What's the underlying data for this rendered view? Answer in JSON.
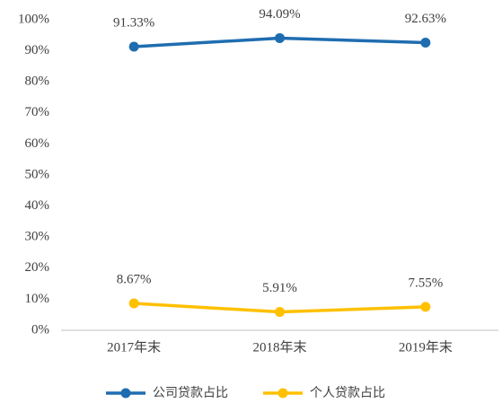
{
  "chart_data": {
    "type": "line",
    "categories": [
      "2017年末",
      "2018年末",
      "2019年末"
    ],
    "series": [
      {
        "name": "公司贷款占比",
        "color": "#1f6db0",
        "values": [
          91.33,
          94.09,
          92.63
        ],
        "value_labels": [
          "91.33%",
          "94.09%",
          "92.63%"
        ]
      },
      {
        "name": "个人贷款占比",
        "color": "#ffc000",
        "values": [
          8.67,
          5.91,
          7.55
        ],
        "value_labels": [
          "8.67%",
          "5.91%",
          "7.55%"
        ]
      }
    ],
    "ylim": [
      0,
      100
    ],
    "yticks": [
      {
        "value": 0,
        "label": "0%"
      },
      {
        "value": 10,
        "label": "10%"
      },
      {
        "value": 20,
        "label": "20%"
      },
      {
        "value": 30,
        "label": "30%"
      },
      {
        "value": 40,
        "label": "40%"
      },
      {
        "value": 50,
        "label": "50%"
      },
      {
        "value": 60,
        "label": "60%"
      },
      {
        "value": 70,
        "label": "70%"
      },
      {
        "value": 80,
        "label": "80%"
      },
      {
        "value": 90,
        "label": "90%"
      },
      {
        "value": 100,
        "label": "100%"
      }
    ],
    "grid": false,
    "legend": "bottom"
  }
}
